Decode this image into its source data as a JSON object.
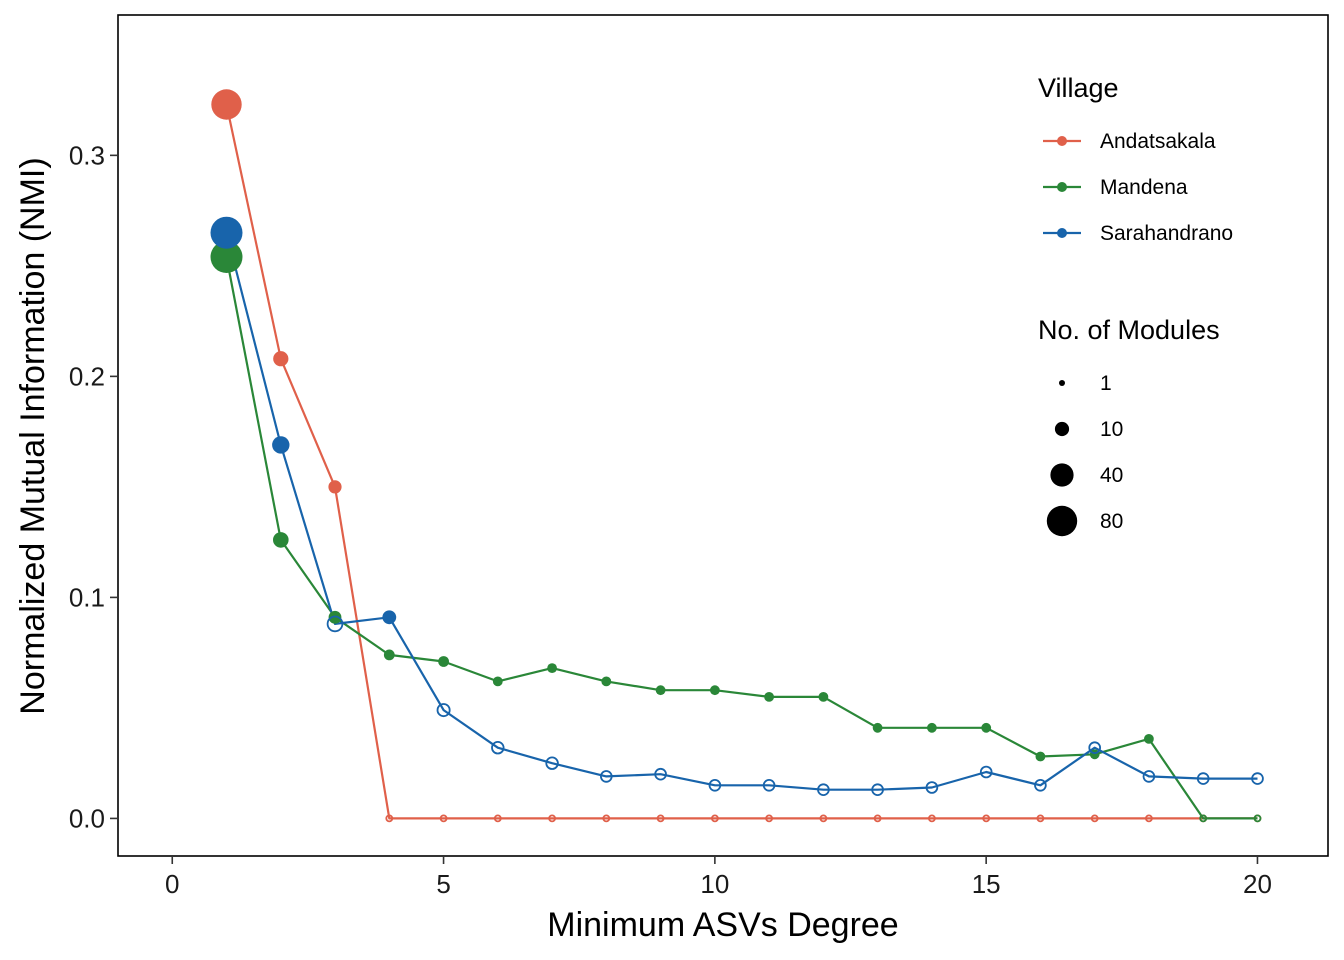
{
  "chart_data": {
    "type": "line",
    "xlabel": "Minimum ASVs Degree",
    "ylabel": "Normalized Mutual Information (NMI)",
    "xlim": [
      -1,
      21.3
    ],
    "ylim": [
      -0.017,
      0.3635
    ],
    "x_ticks": [
      0,
      5,
      10,
      15,
      20
    ],
    "x_tick_labels": [
      "0",
      "5",
      "10",
      "15",
      "20"
    ],
    "y_ticks": [
      0.0,
      0.1,
      0.2,
      0.3
    ],
    "y_tick_labels": [
      "0.0",
      "0.1",
      "0.2",
      "0.3"
    ],
    "grid": false,
    "legend_placement": "top-right inside",
    "legend_color_title": "Village",
    "legend_size_title": "No. of Modules",
    "size_legend": [
      {
        "label": "1",
        "value": 1
      },
      {
        "label": "10",
        "value": 10
      },
      {
        "label": "40",
        "value": 40
      },
      {
        "label": "80",
        "value": 80
      }
    ],
    "series": [
      {
        "name": "Andatsakala",
        "color": "#E0604A",
        "x": [
          1,
          2,
          3,
          4,
          5,
          6,
          7,
          8,
          9,
          10,
          11,
          12,
          13,
          14,
          15,
          16,
          17,
          18,
          19,
          20
        ],
        "y": [
          0.323,
          0.208,
          0.15,
          0.0,
          0.0,
          0.0,
          0.0,
          0.0,
          0.0,
          0.0,
          0.0,
          0.0,
          0.0,
          0.0,
          0.0,
          0.0,
          0.0,
          0.0,
          0.0,
          0.0
        ],
        "modules": [
          80,
          12,
          8,
          1,
          1,
          1,
          1,
          1,
          1,
          1,
          1,
          1,
          1,
          1,
          1,
          1,
          1,
          1,
          1,
          1
        ],
        "filled": [
          true,
          true,
          true,
          false,
          false,
          false,
          false,
          false,
          false,
          false,
          false,
          false,
          false,
          false,
          false,
          false,
          false,
          false,
          false,
          false
        ]
      },
      {
        "name": "Mandena",
        "color": "#2A8738",
        "x": [
          1,
          2,
          3,
          4,
          5,
          6,
          7,
          8,
          9,
          10,
          11,
          12,
          13,
          14,
          15,
          16,
          17,
          18,
          19,
          20
        ],
        "y": [
          0.254,
          0.126,
          0.091,
          0.074,
          0.071,
          0.062,
          0.068,
          0.062,
          0.058,
          0.058,
          0.055,
          0.055,
          0.041,
          0.041,
          0.041,
          0.028,
          0.029,
          0.036,
          0.0,
          0.0
        ],
        "modules": [
          90,
          13,
          7,
          4,
          4,
          3,
          3,
          3,
          3,
          3,
          3,
          3,
          3,
          3,
          3,
          3,
          3,
          3,
          1,
          1
        ],
        "filled": [
          true,
          true,
          true,
          true,
          true,
          true,
          true,
          true,
          true,
          true,
          true,
          true,
          true,
          true,
          true,
          true,
          true,
          true,
          false,
          false
        ]
      },
      {
        "name": "Sarahandrano",
        "color": "#1864AB",
        "x": [
          1,
          2,
          3,
          4,
          5,
          6,
          7,
          8,
          9,
          10,
          11,
          12,
          13,
          14,
          15,
          16,
          17,
          18,
          19,
          20
        ],
        "y": [
          0.265,
          0.169,
          0.088,
          0.091,
          0.049,
          0.032,
          0.025,
          0.019,
          0.02,
          0.015,
          0.015,
          0.013,
          0.013,
          0.014,
          0.021,
          0.015,
          0.032,
          0.019,
          0.018,
          0.018
        ],
        "modules": [
          90,
          18,
          11,
          9,
          6,
          5,
          5,
          4,
          4,
          4,
          4,
          4,
          4,
          4,
          4,
          4,
          4,
          4,
          4,
          4
        ],
        "filled": [
          true,
          true,
          false,
          true,
          false,
          false,
          false,
          false,
          false,
          false,
          false,
          false,
          false,
          false,
          false,
          false,
          false,
          false,
          false,
          false
        ]
      }
    ]
  }
}
